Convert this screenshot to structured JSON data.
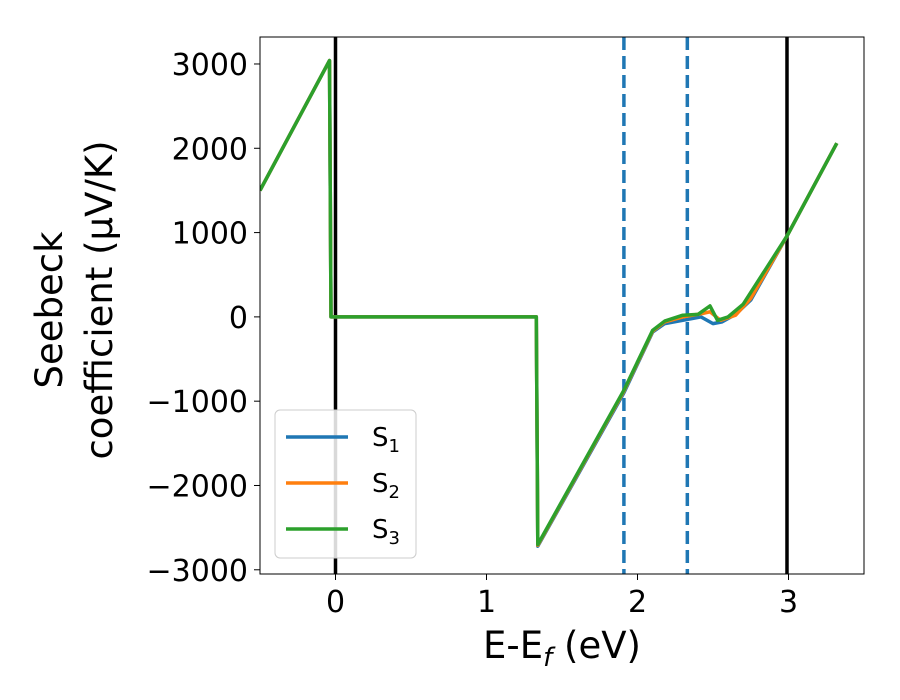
{
  "chart_data": {
    "type": "line",
    "xlabel_main": "E-E",
    "xlabel_sub": "f",
    "xlabel_tail": " (eV)",
    "ylabel_line1": "Seebeck",
    "ylabel_line2": "coefficient  (μV/K)",
    "xlim": [
      -0.5,
      3.5
    ],
    "ylim": [
      -3050,
      3320
    ],
    "xticks": [
      0,
      1,
      2,
      3
    ],
    "xtick_labels": [
      "0",
      "1",
      "2",
      "3"
    ],
    "yticks": [
      -3000,
      -2000,
      -1000,
      0,
      1000,
      2000,
      3000
    ],
    "ytick_labels": [
      "−3000",
      "−2000",
      "−1000",
      "0",
      "1000",
      "2000",
      "3000"
    ],
    "grid": false,
    "legend_position": "lower-left",
    "vlines": [
      {
        "x": 0.0,
        "style": "solid",
        "color": "#000000"
      },
      {
        "x": 2.99,
        "style": "solid",
        "color": "#000000"
      },
      {
        "x": 1.91,
        "style": "dashed",
        "color": "#1f77b4"
      },
      {
        "x": 2.33,
        "style": "dashed",
        "color": "#1f77b4"
      }
    ],
    "series": [
      {
        "name": "S",
        "sub": "1",
        "color": "#1f77b4",
        "x": [
          -0.5,
          -0.04,
          -0.03,
          1.33,
          1.34,
          1.91,
          2.1,
          2.18,
          2.3,
          2.42,
          2.5,
          2.56,
          2.65,
          2.75,
          2.99,
          3.32
        ],
        "y": [
          1500,
          3040,
          0,
          0,
          -2720,
          -900,
          -180,
          -80,
          -40,
          0,
          -80,
          -60,
          30,
          200,
          960,
          2060
        ]
      },
      {
        "name": "S",
        "sub": "2",
        "color": "#ff7f0e",
        "x": [
          -0.5,
          -0.04,
          -0.03,
          1.33,
          1.34,
          1.91,
          2.1,
          2.18,
          2.3,
          2.43,
          2.48,
          2.55,
          2.65,
          2.75,
          2.99,
          3.32
        ],
        "y": [
          1500,
          3040,
          0,
          0,
          -2710,
          -880,
          -170,
          -60,
          0,
          40,
          60,
          -40,
          20,
          220,
          960,
          2060
        ]
      },
      {
        "name": "S",
        "sub": "3",
        "color": "#2ca02c",
        "x": [
          -0.5,
          -0.04,
          -0.03,
          1.33,
          1.34,
          1.91,
          2.1,
          2.18,
          2.3,
          2.4,
          2.48,
          2.53,
          2.6,
          2.7,
          2.99,
          3.32
        ],
        "y": [
          1500,
          3040,
          0,
          0,
          -2700,
          -870,
          -160,
          -50,
          20,
          30,
          130,
          -40,
          0,
          150,
          960,
          2060
        ]
      }
    ]
  }
}
